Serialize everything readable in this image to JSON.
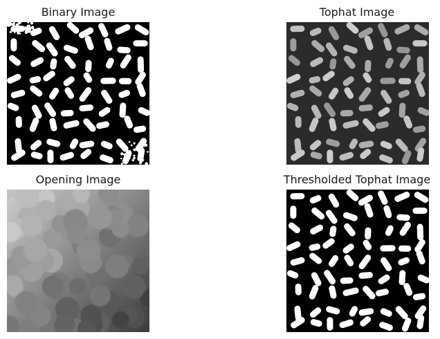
{
  "figure": {
    "panels": [
      {
        "title": "Binary Image",
        "kind": "binary"
      },
      {
        "title": "Tophat Image",
        "kind": "tophat"
      },
      {
        "title": "Opening Image",
        "kind": "opening"
      },
      {
        "title": "Thresholded Tophat Image",
        "kind": "thresholded"
      }
    ]
  },
  "colors": {
    "background": "#ffffff",
    "grain_binary": "#ffffff",
    "black": "#000000",
    "tophat_bg": "#2b2b2b",
    "tophat_grain": "#a9a9a9"
  }
}
